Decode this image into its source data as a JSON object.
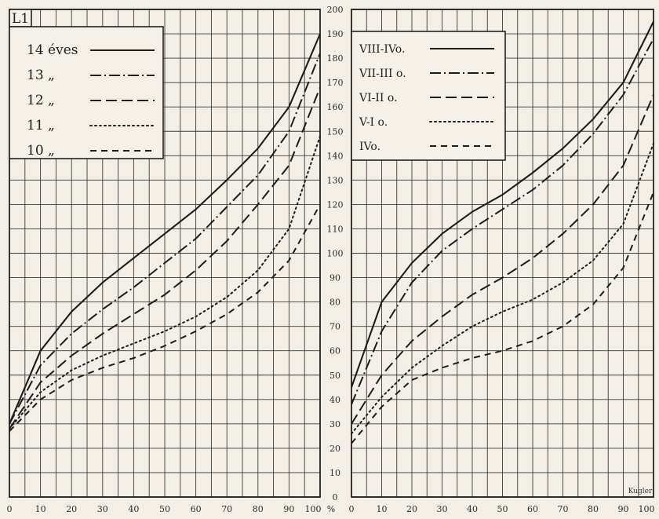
{
  "chart_data": [
    {
      "type": "line",
      "panel_label": "L1",
      "xlim": [
        0,
        100
      ],
      "ylim": [
        0,
        200
      ],
      "x_ticks": [
        "0",
        "10",
        "20",
        "30",
        "40",
        "50",
        "60",
        "70",
        "80",
        "90",
        "100"
      ],
      "grid": true,
      "legend_position": "top-left",
      "series": [
        {
          "name": "14 éves",
          "dash": "solid",
          "points": [
            [
              0,
              30
            ],
            [
              10,
              60
            ],
            [
              20,
              76
            ],
            [
              30,
              88
            ],
            [
              40,
              98
            ],
            [
              50,
              108
            ],
            [
              60,
              118
            ],
            [
              70,
              130
            ],
            [
              80,
              143
            ],
            [
              90,
              160
            ],
            [
              100,
              190
            ]
          ]
        },
        {
          "name": "13 „",
          "dash": "dashdot",
          "points": [
            [
              0,
              30
            ],
            [
              10,
              54
            ],
            [
              20,
              67
            ],
            [
              30,
              77
            ],
            [
              40,
              86
            ],
            [
              50,
              96
            ],
            [
              60,
              106
            ],
            [
              70,
              119
            ],
            [
              80,
              132
            ],
            [
              90,
              150
            ],
            [
              100,
              182
            ]
          ]
        },
        {
          "name": "12 „",
          "dash": "longdash",
          "points": [
            [
              0,
              28
            ],
            [
              10,
              47
            ],
            [
              20,
              58
            ],
            [
              30,
              67
            ],
            [
              40,
              75
            ],
            [
              50,
              83
            ],
            [
              60,
              93
            ],
            [
              70,
              105
            ],
            [
              80,
              120
            ],
            [
              90,
              136
            ],
            [
              100,
              168
            ]
          ]
        },
        {
          "name": "11 „",
          "dash": "dotted",
          "points": [
            [
              0,
              28
            ],
            [
              10,
              43
            ],
            [
              20,
              52
            ],
            [
              30,
              58
            ],
            [
              40,
              63
            ],
            [
              50,
              68
            ],
            [
              60,
              74
            ],
            [
              70,
              82
            ],
            [
              80,
              93
            ],
            [
              90,
              110
            ],
            [
              100,
              148
            ]
          ]
        },
        {
          "name": "10 „",
          "dash": "dashed",
          "points": [
            [
              0,
              27
            ],
            [
              10,
              40
            ],
            [
              20,
              48
            ],
            [
              30,
              53
            ],
            [
              40,
              57
            ],
            [
              50,
              62
            ],
            [
              60,
              68
            ],
            [
              70,
              75
            ],
            [
              80,
              84
            ],
            [
              90,
              97
            ],
            [
              100,
              120
            ]
          ]
        }
      ]
    },
    {
      "type": "line",
      "xlim": [
        0,
        100
      ],
      "ylim": [
        0,
        200
      ],
      "x_ticks": [
        "0",
        "10",
        "20",
        "30",
        "40",
        "50",
        "60",
        "70",
        "80",
        "90",
        "100"
      ],
      "y_ticks": [
        "0",
        "10",
        "20",
        "30",
        "40",
        "50",
        "60",
        "70",
        "80",
        "90",
        "100",
        "110",
        "120",
        "130",
        "140",
        "150",
        "160",
        "170",
        "180",
        "190",
        "200"
      ],
      "x_unit": "%",
      "grid": true,
      "legend_position": "top-left",
      "series": [
        {
          "name": "VIII-IVo.",
          "dash": "solid",
          "points": [
            [
              0,
              45
            ],
            [
              10,
              80
            ],
            [
              20,
              96
            ],
            [
              30,
              108
            ],
            [
              40,
              117
            ],
            [
              50,
              124
            ],
            [
              60,
              133
            ],
            [
              70,
              143
            ],
            [
              80,
              155
            ],
            [
              90,
              170
            ],
            [
              100,
              195
            ]
          ]
        },
        {
          "name": "VII-III o.",
          "dash": "dashdot",
          "points": [
            [
              0,
              38
            ],
            [
              10,
              68
            ],
            [
              20,
              88
            ],
            [
              30,
              101
            ],
            [
              40,
              110
            ],
            [
              50,
              118
            ],
            [
              60,
              126
            ],
            [
              70,
              136
            ],
            [
              80,
              149
            ],
            [
              90,
              165
            ],
            [
              100,
              188
            ]
          ]
        },
        {
          "name": "VI-II o.",
          "dash": "longdash",
          "points": [
            [
              0,
              30
            ],
            [
              10,
              50
            ],
            [
              20,
              64
            ],
            [
              30,
              74
            ],
            [
              40,
              83
            ],
            [
              50,
              90
            ],
            [
              60,
              98
            ],
            [
              70,
              108
            ],
            [
              80,
              120
            ],
            [
              90,
              136
            ],
            [
              100,
              165
            ]
          ]
        },
        {
          "name": "V-I o.",
          "dash": "dotted",
          "points": [
            [
              0,
              26
            ],
            [
              10,
              41
            ],
            [
              20,
              53
            ],
            [
              30,
              62
            ],
            [
              40,
              70
            ],
            [
              50,
              76
            ],
            [
              60,
              81
            ],
            [
              70,
              88
            ],
            [
              80,
              97
            ],
            [
              90,
              112
            ],
            [
              100,
              145
            ]
          ]
        },
        {
          "name": "IVo.",
          "dash": "dashed",
          "points": [
            [
              0,
              22
            ],
            [
              10,
              37
            ],
            [
              20,
              48
            ],
            [
              30,
              53
            ],
            [
              40,
              57
            ],
            [
              50,
              60
            ],
            [
              60,
              64
            ],
            [
              70,
              70
            ],
            [
              80,
              79
            ],
            [
              90,
              94
            ],
            [
              100,
              125
            ]
          ]
        }
      ]
    }
  ],
  "corner_label": "Kugler"
}
